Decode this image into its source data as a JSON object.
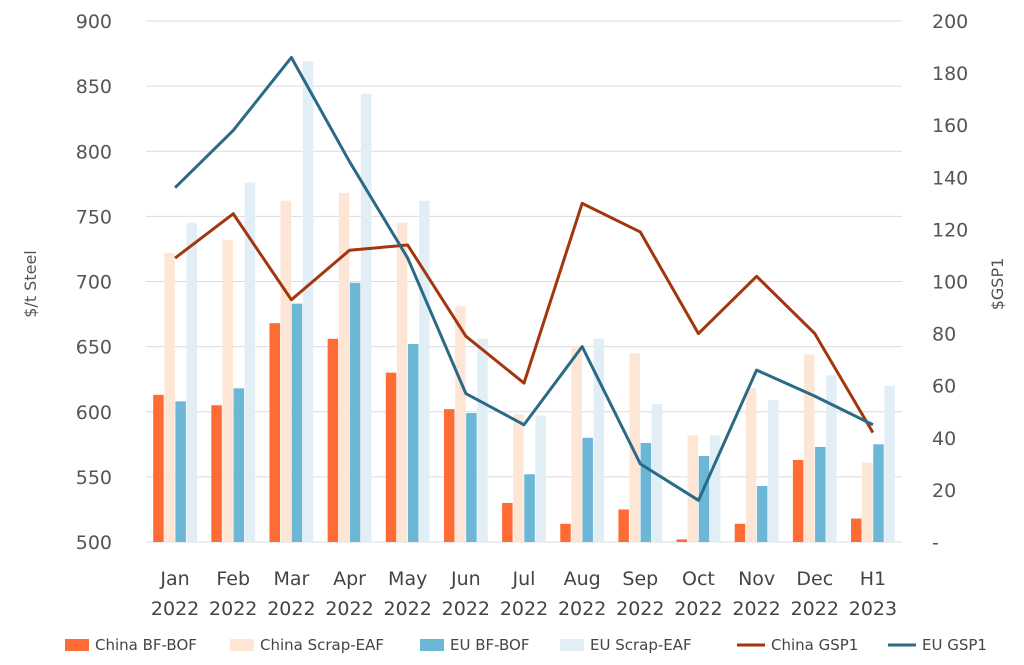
{
  "chart_data": {
    "type": "bar",
    "categories": [
      [
        "Jan",
        "2022"
      ],
      [
        "Feb",
        "2022"
      ],
      [
        "Mar",
        "2022"
      ],
      [
        "Apr",
        "2022"
      ],
      [
        "May",
        "2022"
      ],
      [
        "Jun",
        "2022"
      ],
      [
        "Jul",
        "2022"
      ],
      [
        "Aug",
        "2022"
      ],
      [
        "Sep",
        "2022"
      ],
      [
        "Oct",
        "2022"
      ],
      [
        "Nov",
        "2022"
      ],
      [
        "Dec",
        "2022"
      ],
      [
        "H1",
        "2023"
      ]
    ],
    "ylabel": "$/t Steel",
    "y2label": "$GSP1",
    "ylim": [
      500,
      900
    ],
    "y2lim": [
      0,
      200
    ],
    "yticks": [
      "500",
      "550",
      "600",
      "650",
      "700",
      "750",
      "800",
      "850",
      "900"
    ],
    "y2ticks": [
      "-",
      "20",
      "40",
      "60",
      "80",
      "100",
      "120",
      "140",
      "160",
      "180",
      "200"
    ],
    "grid": "horizontal",
    "legend_position": "bottom",
    "series": [
      {
        "name": "China BF-BOF",
        "kind": "bar",
        "axis": "left",
        "color": "#ff6b35",
        "values": [
          613,
          605,
          668,
          656,
          630,
          602,
          530,
          514,
          525,
          502,
          514,
          563,
          518
        ]
      },
      {
        "name": "China Scrap-EAF",
        "kind": "bar",
        "axis": "left",
        "color": "#fde6d6",
        "values": [
          722,
          732,
          762,
          768,
          745,
          681,
          598,
          650,
          645,
          582,
          618,
          644,
          561
        ]
      },
      {
        "name": "EU BF-BOF",
        "kind": "bar",
        "axis": "left",
        "color": "#6cb7d6",
        "values": [
          608,
          618,
          683,
          699,
          652,
          599,
          552,
          580,
          576,
          566,
          543,
          573,
          575
        ]
      },
      {
        "name": "EU Scrap-EAF",
        "kind": "bar",
        "axis": "left",
        "color": "#e1eef6",
        "values": [
          745,
          776,
          869,
          844,
          762,
          656,
          597,
          656,
          606,
          582,
          609,
          628,
          620
        ]
      },
      {
        "name": "China GSP1",
        "kind": "line",
        "axis": "right",
        "color": "#a3360f",
        "values": [
          109,
          126,
          93,
          112,
          114,
          79,
          61,
          130,
          119,
          80,
          102,
          80,
          42
        ]
      },
      {
        "name": "EU GSP1",
        "kind": "line",
        "axis": "right",
        "color": "#2a6a86",
        "values": [
          136,
          158,
          186,
          146,
          109,
          57,
          45,
          75,
          30,
          16,
          66,
          56,
          45
        ]
      }
    ]
  }
}
